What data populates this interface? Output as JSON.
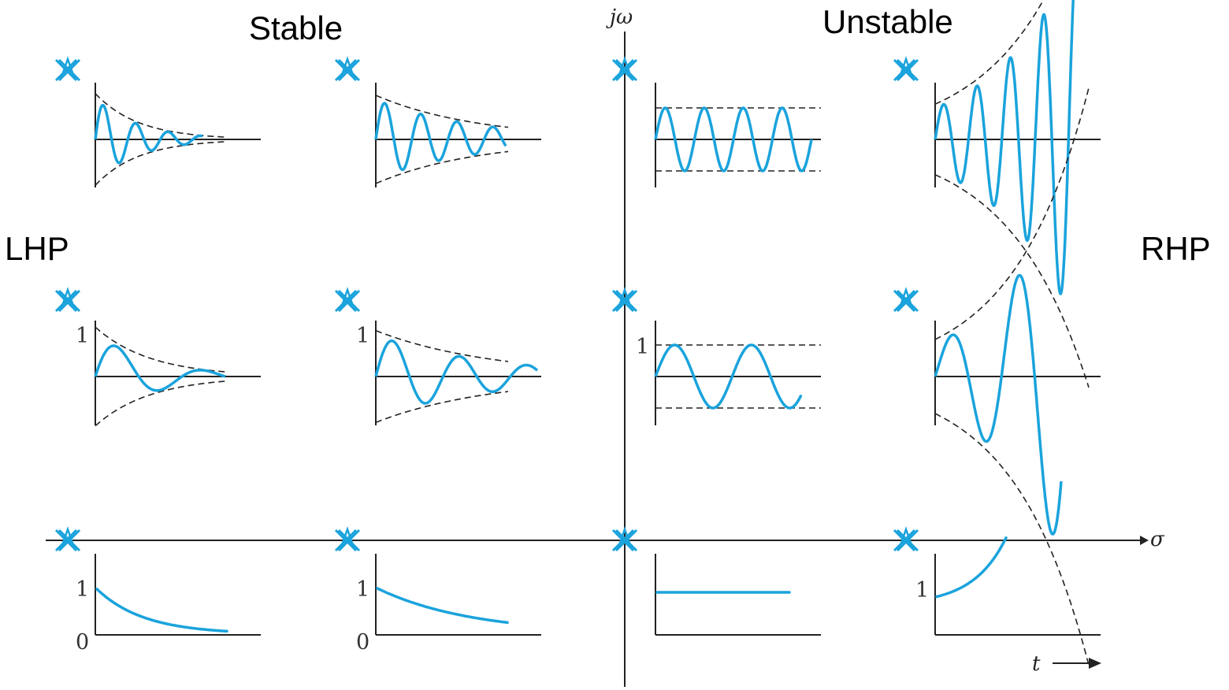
{
  "labels": {
    "stable": "Stable",
    "unstable": "Unstable",
    "lhp": "LHP",
    "rhp": "RHP",
    "imag_axis": "jω",
    "real_axis": "σ",
    "time_axis": "t"
  },
  "colors": {
    "response": "#1aa3dc",
    "pole_marker": "#1aa3dc",
    "axis": "#222222",
    "envelope": "#222222"
  },
  "pole_marker_icon": "cross-x-icon",
  "rows": [
    {
      "row": "high-frequency",
      "plots": [
        {
          "column": "lhp-far",
          "response": "decaying-oscillation",
          "freq": "high",
          "growth": "fast-decay",
          "ticks": []
        },
        {
          "column": "lhp-near",
          "response": "decaying-oscillation",
          "freq": "high",
          "growth": "slow-decay",
          "ticks": []
        },
        {
          "column": "imag-axis",
          "response": "sustained-oscillation",
          "freq": "high",
          "growth": "constant",
          "ticks": []
        },
        {
          "column": "rhp",
          "response": "growing-oscillation",
          "freq": "high",
          "growth": "growth",
          "ticks": []
        }
      ]
    },
    {
      "row": "low-frequency",
      "plots": [
        {
          "column": "lhp-far",
          "response": "decaying-oscillation",
          "freq": "low",
          "growth": "fast-decay",
          "ticks": [
            "1"
          ]
        },
        {
          "column": "lhp-near",
          "response": "decaying-oscillation",
          "freq": "low",
          "growth": "slow-decay",
          "ticks": [
            "1"
          ]
        },
        {
          "column": "imag-axis",
          "response": "sustained-oscillation",
          "freq": "low",
          "growth": "constant",
          "ticks": [
            "1"
          ]
        },
        {
          "column": "rhp",
          "response": "growing-oscillation",
          "freq": "low",
          "growth": "growth",
          "ticks": []
        }
      ]
    },
    {
      "row": "real-axis",
      "plots": [
        {
          "column": "lhp-far",
          "response": "fast-exponential-decay",
          "ticks": [
            "1",
            "0"
          ]
        },
        {
          "column": "lhp-near",
          "response": "slow-exponential-decay",
          "ticks": [
            "1",
            "0"
          ]
        },
        {
          "column": "imag-axis",
          "response": "constant",
          "ticks": []
        },
        {
          "column": "rhp",
          "response": "exponential-growth",
          "ticks": [
            "1"
          ]
        }
      ]
    }
  ]
}
